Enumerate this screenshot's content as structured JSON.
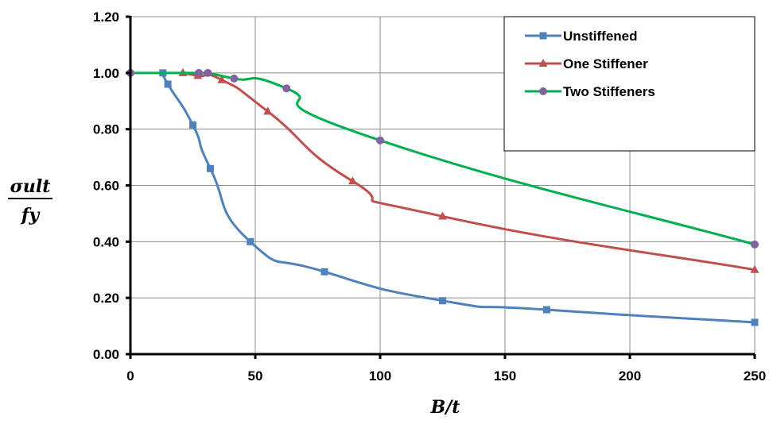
{
  "chart_data": {
    "type": "line",
    "xlabel": "B/t",
    "ylabel": {
      "numerator": "σult",
      "denominator": "fy"
    },
    "xlim": [
      0,
      250
    ],
    "ylim": [
      0,
      1.2
    ],
    "xticks": [
      "0",
      "50",
      "100",
      "150",
      "200",
      "250"
    ],
    "yticks": [
      "0.00",
      "0.20",
      "0.40",
      "0.60",
      "0.80",
      "1.00",
      "1.20"
    ],
    "grid": true,
    "legend_position": "top-right",
    "series": [
      {
        "name": "Unstiffened",
        "color": "#4f81bd",
        "marker": "square",
        "x": [
          13,
          15,
          25,
          32,
          48,
          77.7,
          125,
          166.7,
          250
        ],
        "y": [
          1.0,
          0.96,
          0.815,
          0.66,
          0.4,
          0.293,
          0.19,
          0.158,
          0.113
        ]
      },
      {
        "name": "One Stiffener",
        "color": "#c0504d",
        "marker": "triangle",
        "x": [
          21,
          27,
          36.6,
          55,
          89,
          125,
          250
        ],
        "y": [
          1.0,
          0.99,
          0.975,
          0.863,
          0.615,
          0.49,
          0.3
        ]
      },
      {
        "name": "Two Stiffeners",
        "color": "#00b050",
        "marker_color": "#8064a2",
        "marker": "circle",
        "x": [
          0,
          27.4,
          31,
          41.5,
          62.5,
          100,
          250
        ],
        "y": [
          1.0,
          1.0,
          1.0,
          0.98,
          0.945,
          0.76,
          0.39
        ]
      }
    ]
  }
}
